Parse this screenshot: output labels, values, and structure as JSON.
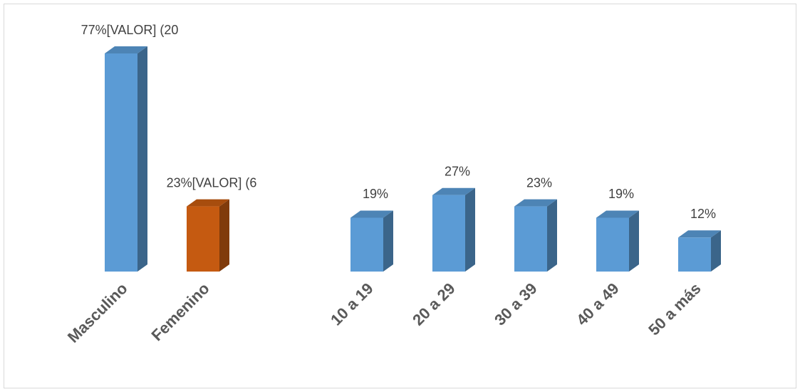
{
  "chart_data": {
    "type": "bar3d",
    "categories": [
      "Masculino",
      "Femenino",
      null,
      "10 a 19",
      "20 a 29",
      "30 a 39",
      "40 a 49",
      "50 a más"
    ],
    "values": [
      77,
      23,
      null,
      19,
      27,
      23,
      19,
      12
    ],
    "value_labels": [
      "77%[VALOR] (20",
      "23%[VALOR] (6",
      null,
      "19%",
      "27%",
      "23%",
      "19%",
      "12%"
    ],
    "colors": [
      "#5b9bd5",
      "#c55a11",
      null,
      "#5b9bd5",
      "#5b9bd5",
      "#5b9bd5",
      "#5b9bd5",
      "#5b9bd5"
    ],
    "ylim": [
      0,
      77
    ]
  }
}
